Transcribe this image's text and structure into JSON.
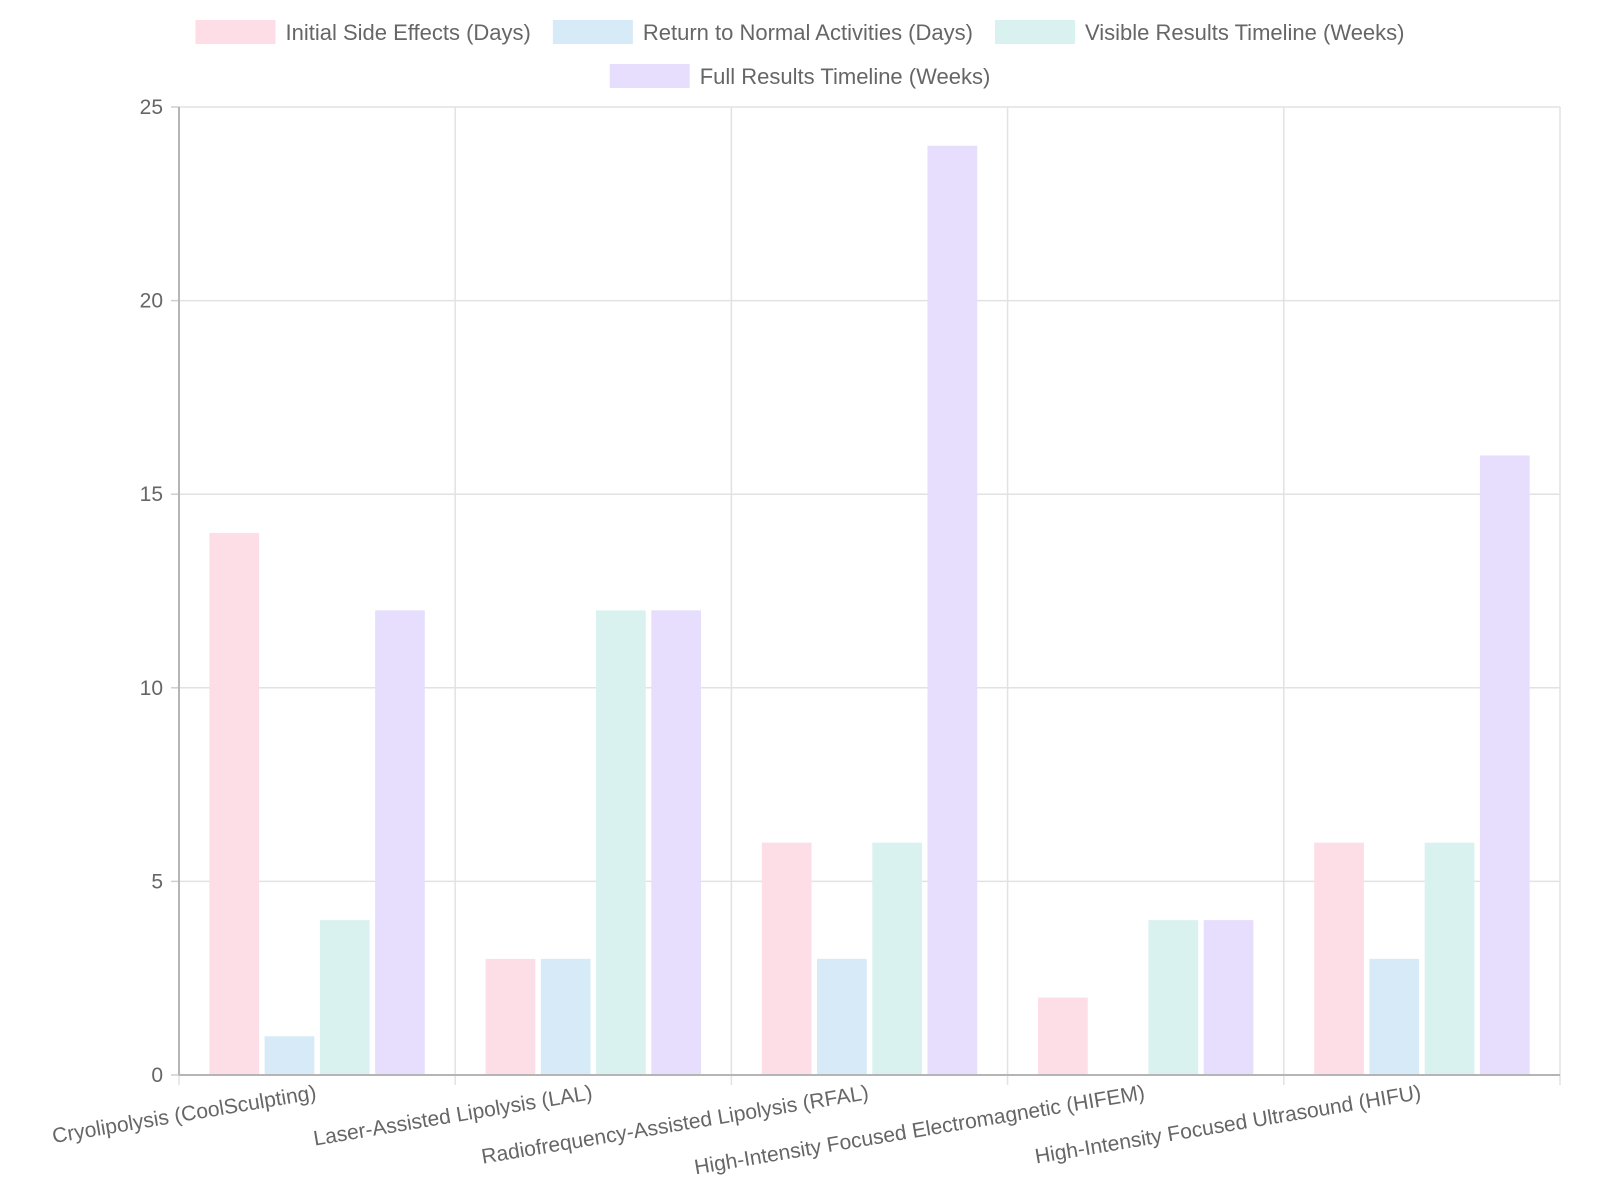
{
  "chart_data": {
    "type": "bar",
    "title": "",
    "xlabel": "",
    "ylabel": "",
    "ylim": [
      0,
      25
    ],
    "y_ticks": [
      "0",
      "5",
      "10",
      "15",
      "20",
      "25"
    ],
    "y_tick_values": [
      0,
      5,
      10,
      15,
      20,
      25
    ],
    "grid": true,
    "legend_position": "top",
    "categories": [
      "Cryolipolysis (CoolSculpting)",
      "Laser-Assisted Lipolysis (LAL)",
      "Radiofrequency-Assisted Lipolysis (RFAL)",
      "High-Intensity Focused Electromagnetic (HIFEM)",
      "High-Intensity Focused Ultrasound (HIFU)"
    ],
    "series": [
      {
        "name": "Initial Side Effects (Days)",
        "values": [
          14,
          3,
          6,
          2,
          6
        ],
        "color": "#fddde6"
      },
      {
        "name": "Return to Normal Activities (Days)",
        "values": [
          1,
          3,
          3,
          0,
          3
        ],
        "color": "#d6eaf8"
      },
      {
        "name": "Visible Results Timeline (Weeks)",
        "values": [
          4,
          12,
          6,
          4,
          6
        ],
        "color": "#d9f2f0"
      },
      {
        "name": "Full Results Timeline (Weeks)",
        "values": [
          12,
          12,
          24,
          4,
          16
        ],
        "color": "#e7defd"
      }
    ]
  }
}
